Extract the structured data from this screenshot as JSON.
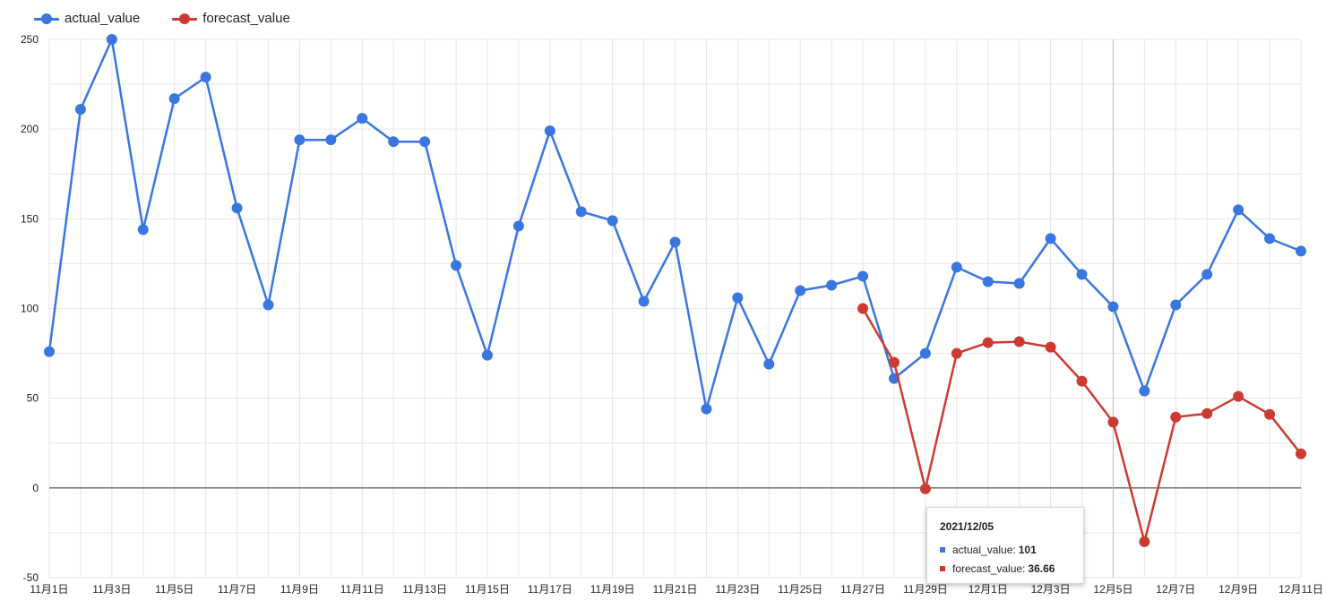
{
  "chart_data": {
    "type": "line",
    "x": [
      "11月1日",
      "11月2日",
      "11月3日",
      "11月4日",
      "11月5日",
      "11月6日",
      "11月7日",
      "11月8日",
      "11月9日",
      "11月10日",
      "11月11日",
      "11月12日",
      "11月13日",
      "11月14日",
      "11月15日",
      "11月16日",
      "11月17日",
      "11月18日",
      "11月19日",
      "11月20日",
      "11月21日",
      "11月22日",
      "11月23日",
      "11月24日",
      "11月25日",
      "11月26日",
      "11月27日",
      "11月28日",
      "11月29日",
      "11月30日",
      "12月1日",
      "12月2日",
      "12月3日",
      "12月4日",
      "12月5日",
      "12月6日",
      "12月7日",
      "12月8日",
      "12月9日",
      "12月10日",
      "12月11日"
    ],
    "x_tick_labels": [
      "11月1日",
      "11月3日",
      "11月5日",
      "11月7日",
      "11月9日",
      "11月11日",
      "11月13日",
      "11月15日",
      "11月17日",
      "11月19日",
      "11月21日",
      "11月23日",
      "11月25日",
      "11月27日",
      "11月29日",
      "12月1日",
      "12月3日",
      "12月5日",
      "12月7日",
      "12月9日",
      "12月11日"
    ],
    "series": [
      {
        "name": "actual_value",
        "color": "#3a76e0",
        "values": [
          76,
          211,
          250,
          144,
          217,
          229,
          156,
          102,
          194,
          194,
          206,
          193,
          193,
          124,
          74,
          146,
          199,
          154,
          149,
          104,
          137,
          44,
          106,
          69,
          110,
          113,
          118,
          61,
          75,
          123,
          115,
          114,
          139,
          119,
          101,
          54,
          102,
          119,
          155,
          139,
          132
        ]
      },
      {
        "name": "forecast_value",
        "color": "#cc3b32",
        "values": [
          null,
          null,
          null,
          null,
          null,
          null,
          null,
          null,
          null,
          null,
          null,
          null,
          null,
          null,
          null,
          null,
          null,
          null,
          null,
          null,
          null,
          null,
          null,
          null,
          null,
          null,
          100,
          70,
          -0.5,
          75,
          81,
          81.5,
          78.5,
          59.5,
          36.66,
          -30,
          39.5,
          41.5,
          51,
          41,
          19
        ]
      }
    ],
    "ylim": [
      -50,
      250
    ],
    "yticks": [
      -50,
      0,
      50,
      100,
      150,
      200,
      250
    ],
    "grid": true,
    "legend": "top-left",
    "tooltip": {
      "title": "2021/12/05",
      "rows": [
        {
          "label": "actual_value: ",
          "value": "101",
          "color": "#3a76e0"
        },
        {
          "label": "forecast_value: ",
          "value": "36.66",
          "color": "#cc3b32"
        }
      ]
    }
  }
}
